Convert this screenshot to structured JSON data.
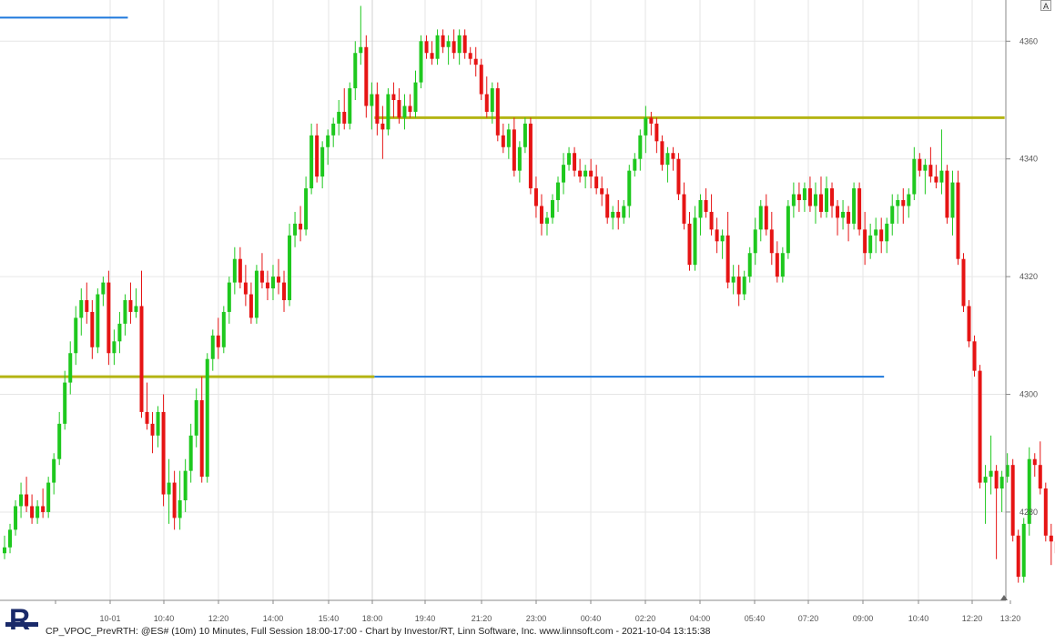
{
  "caption": "CP_VPOC_PrevRTH: @ES# (10m) 10 Minutes, Full Session 18:00-17:00 - Chart by Investor/RT, Linn Software, Inc. www.linnsoft.com - 2021-10-04 13:15:38",
  "scale_button_label": "A",
  "colors": {
    "up": "#1ec81e",
    "down": "#e61414",
    "vpoc_line": "#b4b414",
    "blue_line": "#1e78dc",
    "grid": "#e6e6e6"
  },
  "chart_data": {
    "type": "candlestick",
    "title": "",
    "ylim": [
      4265,
      4367
    ],
    "grid": true,
    "price_ticks": [
      4280,
      4300,
      4320,
      4340,
      4360
    ],
    "time_ticks": [
      "10-01",
      "10:40",
      "12:20",
      "14:00",
      "15:40",
      "18:00",
      "19:40",
      "21:20",
      "23:00",
      "00:40",
      "02:20",
      "04:00",
      "05:40",
      "07:20",
      "09:00",
      "10:40",
      "12:20",
      "13:20"
    ],
    "candles": [
      [
        4273,
        4276,
        4272,
        4274
      ],
      [
        4274,
        4278,
        4273,
        4277
      ],
      [
        4277,
        4282,
        4276,
        4281
      ],
      [
        4281,
        4285,
        4279,
        4283
      ],
      [
        4283,
        4286,
        4280,
        4281
      ],
      [
        4281,
        4283,
        4278,
        4279
      ],
      [
        4279,
        4282,
        4278,
        4281
      ],
      [
        4281,
        4284,
        4279,
        4280
      ],
      [
        4280,
        4286,
        4279,
        4285
      ],
      [
        4285,
        4290,
        4283,
        4289
      ],
      [
        4289,
        4297,
        4288,
        4295
      ],
      [
        4295,
        4304,
        4294,
        4302
      ],
      [
        4302,
        4309,
        4300,
        4307
      ],
      [
        4307,
        4315,
        4305,
        4313
      ],
      [
        4313,
        4318,
        4310,
        4316
      ],
      [
        4316,
        4319,
        4312,
        4314
      ],
      [
        4314,
        4316,
        4306,
        4308
      ],
      [
        4308,
        4318,
        4307,
        4317
      ],
      [
        4317,
        4320,
        4315,
        4319
      ],
      [
        4319,
        4321,
        4305,
        4307
      ],
      [
        4307,
        4311,
        4305,
        4309
      ],
      [
        4309,
        4314,
        4307,
        4312
      ],
      [
        4312,
        4317,
        4310,
        4316
      ],
      [
        4316,
        4319,
        4312,
        4314
      ],
      [
        4314,
        4318,
        4313,
        4315
      ],
      [
        4315,
        4321,
        4296,
        4297
      ],
      [
        4297,
        4302,
        4294,
        4295
      ],
      [
        4295,
        4297,
        4290,
        4293
      ],
      [
        4293,
        4298,
        4291,
        4297
      ],
      [
        4297,
        4300,
        4281,
        4283
      ],
      [
        4283,
        4289,
        4278,
        4285
      ],
      [
        4285,
        4287,
        4277,
        4279
      ],
      [
        4279,
        4287,
        4277,
        4282
      ],
      [
        4282,
        4289,
        4280,
        4287
      ],
      [
        4287,
        4295,
        4285,
        4293
      ],
      [
        4293,
        4301,
        4291,
        4299
      ],
      [
        4299,
        4303,
        4285,
        4286
      ],
      [
        4286,
        4307,
        4285,
        4306
      ],
      [
        4306,
        4311,
        4304,
        4310
      ],
      [
        4310,
        4313,
        4306,
        4308
      ],
      [
        4308,
        4315,
        4307,
        4314
      ],
      [
        4314,
        4320,
        4312,
        4319
      ],
      [
        4319,
        4325,
        4317,
        4323
      ],
      [
        4323,
        4325,
        4318,
        4319
      ],
      [
        4319,
        4322,
        4315,
        4317
      ],
      [
        4317,
        4319,
        4312,
        4313
      ],
      [
        4313,
        4322,
        4312,
        4321
      ],
      [
        4321,
        4324,
        4318,
        4319
      ],
      [
        4319,
        4321,
        4316,
        4318
      ],
      [
        4318,
        4322,
        4316,
        4320
      ],
      [
        4320,
        4323,
        4317,
        4319
      ],
      [
        4319,
        4321,
        4314,
        4316
      ],
      [
        4316,
        4329,
        4315,
        4327
      ],
      [
        4327,
        4331,
        4325,
        4329
      ],
      [
        4329,
        4332,
        4326,
        4328
      ],
      [
        4328,
        4337,
        4327,
        4335
      ],
      [
        4335,
        4346,
        4334,
        4344
      ],
      [
        4344,
        4346,
        4336,
        4337
      ],
      [
        4337,
        4343,
        4335,
        4342
      ],
      [
        4342,
        4345,
        4339,
        4344
      ],
      [
        4344,
        4347,
        4342,
        4346
      ],
      [
        4346,
        4350,
        4344,
        4348
      ],
      [
        4348,
        4352,
        4345,
        4346
      ],
      [
        4346,
        4353,
        4345,
        4352
      ],
      [
        4352,
        4360,
        4350,
        4358
      ],
      [
        4358,
        4366,
        4356,
        4359
      ],
      [
        4359,
        4361,
        4347,
        4349
      ],
      [
        4349,
        4353,
        4345,
        4351
      ],
      [
        4351,
        4353,
        4344,
        4346
      ],
      [
        4346,
        4349,
        4340,
        4345
      ],
      [
        4345,
        4352,
        4344,
        4351
      ],
      [
        4351,
        4353,
        4347,
        4350
      ],
      [
        4350,
        4352,
        4346,
        4347
      ],
      [
        4347,
        4351,
        4345,
        4349
      ],
      [
        4349,
        4351,
        4347,
        4348
      ],
      [
        4348,
        4355,
        4347,
        4353
      ],
      [
        4353,
        4361,
        4352,
        4360
      ],
      [
        4360,
        4361,
        4357,
        4358
      ],
      [
        4358,
        4360,
        4356,
        4357
      ],
      [
        4357,
        4362,
        4356,
        4361
      ],
      [
        4361,
        4362,
        4358,
        4359
      ],
      [
        4359,
        4361,
        4356,
        4360
      ],
      [
        4360,
        4362,
        4357,
        4358
      ],
      [
        4358,
        4362,
        4356,
        4361
      ],
      [
        4361,
        4362,
        4357,
        4358
      ],
      [
        4358,
        4359,
        4356,
        4357
      ],
      [
        4357,
        4359,
        4354,
        4356
      ],
      [
        4356,
        4357,
        4350,
        4351
      ],
      [
        4351,
        4354,
        4347,
        4348
      ],
      [
        4348,
        4353,
        4346,
        4352
      ],
      [
        4352,
        4353,
        4343,
        4344
      ],
      [
        4344,
        4346,
        4341,
        4342
      ],
      [
        4342,
        4346,
        4340,
        4345
      ],
      [
        4345,
        4347,
        4337,
        4338
      ],
      [
        4338,
        4343,
        4336,
        4342
      ],
      [
        4342,
        4347,
        4341,
        4346
      ],
      [
        4346,
        4347,
        4334,
        4335
      ],
      [
        4335,
        4337,
        4330,
        4332
      ],
      [
        4332,
        4334,
        4327,
        4329
      ],
      [
        4329,
        4331,
        4327,
        4330
      ],
      [
        4330,
        4334,
        4329,
        4333
      ],
      [
        4333,
        4337,
        4331,
        4336
      ],
      [
        4336,
        4341,
        4334,
        4339
      ],
      [
        4339,
        4342,
        4338,
        4341
      ],
      [
        4341,
        4342,
        4337,
        4338
      ],
      [
        4338,
        4340,
        4336,
        4337
      ],
      [
        4337,
        4339,
        4335,
        4338
      ],
      [
        4338,
        4340,
        4335,
        4337
      ],
      [
        4337,
        4339,
        4334,
        4335
      ],
      [
        4335,
        4337,
        4332,
        4334
      ],
      [
        4334,
        4335,
        4329,
        4330
      ],
      [
        4330,
        4332,
        4328,
        4331
      ],
      [
        4331,
        4333,
        4328,
        4330
      ],
      [
        4330,
        4333,
        4329,
        4332
      ],
      [
        4332,
        4339,
        4330,
        4338
      ],
      [
        4338,
        4341,
        4337,
        4340
      ],
      [
        4340,
        4345,
        4338,
        4344
      ],
      [
        4344,
        4349,
        4341,
        4347
      ],
      [
        4347,
        4348,
        4344,
        4346
      ],
      [
        4346,
        4347,
        4341,
        4343
      ],
      [
        4343,
        4344,
        4338,
        4339
      ],
      [
        4339,
        4342,
        4336,
        4341
      ],
      [
        4341,
        4342,
        4338,
        4340
      ],
      [
        4340,
        4341,
        4333,
        4334
      ],
      [
        4334,
        4336,
        4328,
        4329
      ],
      [
        4329,
        4331,
        4321,
        4322
      ],
      [
        4322,
        4332,
        4321,
        4330
      ],
      [
        4330,
        4334,
        4327,
        4333
      ],
      [
        4333,
        4335,
        4330,
        4331
      ],
      [
        4331,
        4334,
        4327,
        4328
      ],
      [
        4328,
        4330,
        4324,
        4326
      ],
      [
        4326,
        4328,
        4323,
        4327
      ],
      [
        4327,
        4331,
        4318,
        4319
      ],
      [
        4319,
        4322,
        4317,
        4320
      ],
      [
        4320,
        4322,
        4315,
        4317
      ],
      [
        4317,
        4321,
        4316,
        4320
      ],
      [
        4320,
        4325,
        4319,
        4324
      ],
      [
        4324,
        4330,
        4322,
        4328
      ],
      [
        4328,
        4333,
        4326,
        4332
      ],
      [
        4332,
        4334,
        4327,
        4328
      ],
      [
        4328,
        4331,
        4322,
        4324
      ],
      [
        4324,
        4326,
        4319,
        4320
      ],
      [
        4320,
        4325,
        4319,
        4324
      ],
      [
        4324,
        4333,
        4323,
        4332
      ],
      [
        4332,
        4336,
        4330,
        4334
      ],
      [
        4334,
        4336,
        4331,
        4333
      ],
      [
        4333,
        4336,
        4331,
        4335
      ],
      [
        4335,
        4337,
        4331,
        4332
      ],
      [
        4332,
        4336,
        4329,
        4334
      ],
      [
        4334,
        4337,
        4330,
        4331
      ],
      [
        4331,
        4337,
        4330,
        4335
      ],
      [
        4335,
        4336,
        4330,
        4332
      ],
      [
        4332,
        4333,
        4327,
        4330
      ],
      [
        4330,
        4333,
        4328,
        4331
      ],
      [
        4331,
        4332,
        4326,
        4329
      ],
      [
        4329,
        4336,
        4328,
        4335
      ],
      [
        4335,
        4336,
        4327,
        4328
      ],
      [
        4328,
        4331,
        4322,
        4324
      ],
      [
        4324,
        4329,
        4323,
        4327
      ],
      [
        4327,
        4330,
        4324,
        4328
      ],
      [
        4328,
        4330,
        4324,
        4326
      ],
      [
        4326,
        4330,
        4324,
        4329
      ],
      [
        4329,
        4334,
        4327,
        4332
      ],
      [
        4332,
        4334,
        4329,
        4333
      ],
      [
        4333,
        4335,
        4329,
        4332
      ],
      [
        4332,
        4335,
        4330,
        4334
      ],
      [
        4334,
        4342,
        4333,
        4340
      ],
      [
        4340,
        4341,
        4337,
        4338
      ],
      [
        4338,
        4340,
        4334,
        4339
      ],
      [
        4339,
        4342,
        4336,
        4337
      ],
      [
        4337,
        4339,
        4335,
        4336
      ],
      [
        4336,
        4345,
        4334,
        4338
      ],
      [
        4338,
        4339,
        4329,
        4330
      ],
      [
        4330,
        4338,
        4327,
        4336
      ],
      [
        4336,
        4338,
        4322,
        4323
      ],
      [
        4323,
        4324,
        4314,
        4315
      ],
      [
        4315,
        4316,
        4308,
        4309
      ],
      [
        4309,
        4310,
        4303,
        4304
      ],
      [
        4304,
        4305,
        4284,
        4285
      ],
      [
        4285,
        4288,
        4278,
        4286
      ],
      [
        4286,
        4293,
        4283,
        4287
      ],
      [
        4287,
        4288,
        4272,
        4284
      ],
      [
        4284,
        4287,
        4280,
        4286
      ],
      [
        4286,
        4290,
        4285,
        4288
      ],
      [
        4288,
        4289,
        4275,
        4276
      ],
      [
        4276,
        4277,
        4268,
        4269
      ],
      [
        4269,
        4279,
        4268,
        4278
      ],
      [
        4278,
        4291,
        4276,
        4289
      ],
      [
        4289,
        4290,
        4286,
        4288
      ],
      [
        4288,
        4292,
        4283,
        4284
      ],
      [
        4284,
        4285,
        4275,
        4276
      ],
      [
        4276,
        4278,
        4271,
        4275
      ],
      [
        4275,
        4276,
        4270,
        4273
      ],
      [
        4273,
        4279,
        4268,
        4278
      ],
      [
        4278,
        4283,
        4276,
        4281
      ],
      [
        4281,
        4285,
        4279,
        4283
      ]
    ],
    "levels": [
      {
        "price": 4303,
        "from_index": 0,
        "to_index": 67,
        "color": "vpoc_line"
      },
      {
        "price": 4303,
        "from_index": 68,
        "to_index": 160,
        "color": "blue_line"
      },
      {
        "price": 4347,
        "from_index": 68,
        "to_index": 182,
        "color": "vpoc_line"
      },
      {
        "price": 4364,
        "from_index": 0,
        "to_index": 22,
        "color": "blue_line"
      }
    ]
  }
}
